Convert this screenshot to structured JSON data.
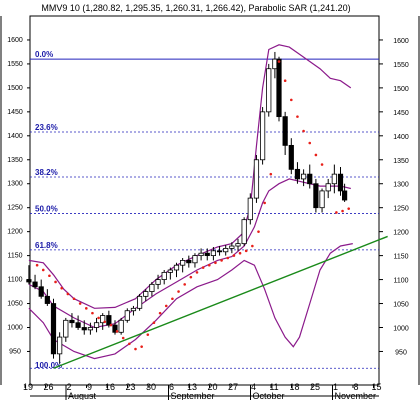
{
  "chart_data": {
    "type": "candlestick",
    "header": "MMV9 10 (1,280.82, 1,295.35, 1,260.31, 1,266.42), Parabolic SAR (1,241.20)",
    "ylim": [
      880,
      1650
    ],
    "right_ticks": [
      950,
      1000,
      1050,
      1100,
      1150,
      1200,
      1250,
      1300,
      1350,
      1400,
      1450,
      1500,
      1550,
      1600
    ],
    "left_ticks": [
      "950",
      "1000",
      "1050",
      "1100",
      "1150",
      "1200",
      "1250",
      "1300",
      "1350",
      "1400",
      "1450",
      "1500",
      "1550",
      "1600"
    ],
    "x_ticks": [
      "19",
      "26",
      "2",
      "9",
      "16",
      "23",
      "30",
      "6",
      "13",
      "20",
      "27",
      "4",
      "11",
      "18",
      "25",
      "1",
      "8",
      "15"
    ],
    "months": [
      {
        "label": "August",
        "tick_index": 2
      },
      {
        "label": "September",
        "tick_index": 7
      },
      {
        "label": "October",
        "tick_index": 11
      },
      {
        "label": "November",
        "tick_index": 15
      }
    ],
    "fibonacci_levels": [
      {
        "label": "0.0%",
        "value": 1560
      },
      {
        "label": "23.6%",
        "value": 1408
      },
      {
        "label": "38.2%",
        "value": 1314
      },
      {
        "label": "50.0%",
        "value": 1238
      },
      {
        "label": "61.8%",
        "value": 1162
      },
      {
        "label": "100.0%",
        "value": 915
      }
    ],
    "trendline": {
      "from": [
        1,
        915
      ],
      "to": [
        17.3,
        1190
      ]
    },
    "bollinger_upper": [
      [
        -0.2,
        1140
      ],
      [
        0.5,
        1135
      ],
      [
        1,
        1110
      ],
      [
        1.5,
        1080
      ],
      [
        2,
        1060
      ],
      [
        3,
        1040
      ],
      [
        4,
        1042
      ],
      [
        5,
        1060
      ],
      [
        6,
        1100
      ],
      [
        7,
        1130
      ],
      [
        8,
        1150
      ],
      [
        9,
        1168
      ],
      [
        9.7,
        1175
      ],
      [
        10.2,
        1195
      ],
      [
        10.6,
        1250
      ],
      [
        10.9,
        1380
      ],
      [
        11.2,
        1500
      ],
      [
        11.5,
        1580
      ],
      [
        12,
        1590
      ],
      [
        12.5,
        1585
      ],
      [
        13,
        1570
      ],
      [
        14,
        1540
      ],
      [
        14.5,
        1520
      ],
      [
        15,
        1515
      ],
      [
        15.5,
        1500
      ]
    ],
    "bollinger_middle": [
      [
        -0.2,
        1090
      ],
      [
        0.5,
        1075
      ],
      [
        1,
        1045
      ],
      [
        2,
        1020
      ],
      [
        3,
        1000
      ],
      [
        4,
        1008
      ],
      [
        5,
        1040
      ],
      [
        6,
        1070
      ],
      [
        7,
        1095
      ],
      [
        8,
        1120
      ],
      [
        9,
        1140
      ],
      [
        9.7,
        1148
      ],
      [
        10.3,
        1170
      ],
      [
        10.8,
        1210
      ],
      [
        11.2,
        1260
      ],
      [
        11.5,
        1285
      ],
      [
        12,
        1300
      ],
      [
        12.5,
        1310
      ],
      [
        13,
        1305
      ],
      [
        14,
        1295
      ],
      [
        15,
        1295
      ],
      [
        15.5,
        1290
      ]
    ],
    "bollinger_lower": [
      [
        -0.2,
        1040
      ],
      [
        0.5,
        1010
      ],
      [
        1,
        975
      ],
      [
        2,
        950
      ],
      [
        3,
        935
      ],
      [
        4,
        945
      ],
      [
        5,
        975
      ],
      [
        6,
        1015
      ],
      [
        7,
        1060
      ],
      [
        8,
        1085
      ],
      [
        9,
        1100
      ],
      [
        9.7,
        1120
      ],
      [
        10.3,
        1140
      ],
      [
        10.8,
        1130
      ],
      [
        11.3,
        1080
      ],
      [
        11.8,
        1020
      ],
      [
        12.3,
        980
      ],
      [
        12.7,
        960
      ],
      [
        13,
        980
      ],
      [
        13.5,
        1050
      ],
      [
        14,
        1120
      ],
      [
        14.5,
        1155
      ],
      [
        15,
        1170
      ],
      [
        15.6,
        1175
      ]
    ],
    "sar": [
      [
        0.2,
        1130
      ],
      [
        0.5,
        1120
      ],
      [
        0.8,
        1108
      ],
      [
        1.1,
        1095
      ],
      [
        1.4,
        1082
      ],
      [
        1.7,
        1070
      ],
      [
        2.0,
        1060
      ],
      [
        2.3,
        1050
      ],
      [
        2.6,
        1040
      ],
      [
        2.9,
        1030
      ],
      [
        3.2,
        1020
      ],
      [
        3.5,
        1012
      ],
      [
        3.8,
        1005
      ],
      [
        4.1,
        992
      ],
      [
        4.4,
        978
      ],
      [
        4.7,
        966
      ],
      [
        5.0,
        955
      ],
      [
        5.3,
        960
      ],
      [
        5.6,
        985
      ],
      [
        5.9,
        1010
      ],
      [
        6.2,
        1030
      ],
      [
        6.5,
        1045
      ],
      [
        6.8,
        1060
      ],
      [
        7.1,
        1075
      ],
      [
        7.4,
        1090
      ],
      [
        7.7,
        1105
      ],
      [
        8.0,
        1115
      ],
      [
        8.3,
        1125
      ],
      [
        8.6,
        1130
      ],
      [
        8.9,
        1135
      ],
      [
        9.2,
        1140
      ],
      [
        9.5,
        1145
      ],
      [
        9.8,
        1150
      ],
      [
        10.1,
        1155
      ],
      [
        10.4,
        1160
      ],
      [
        10.7,
        1170
      ],
      [
        11.0,
        1200
      ],
      [
        11.3,
        1260
      ],
      [
        11.6,
        1320
      ],
      [
        12.0,
        1555
      ],
      [
        12.3,
        1515
      ],
      [
        12.6,
        1475
      ],
      [
        12.9,
        1440
      ],
      [
        13.2,
        1410
      ],
      [
        13.5,
        1385
      ],
      [
        13.8,
        1360
      ],
      [
        14.1,
        1340
      ],
      [
        14.8,
        1240
      ],
      [
        15.1,
        1243
      ],
      [
        15.4,
        1248
      ]
    ],
    "candles": [
      [
        -0.2,
        1100,
        1130,
        1090,
        1095
      ],
      [
        0.1,
        1095,
        1110,
        1080,
        1085
      ],
      [
        0.4,
        1085,
        1100,
        1060,
        1065
      ],
      [
        0.7,
        1065,
        1080,
        1045,
        1050
      ],
      [
        1.0,
        1050,
        1060,
        935,
        945
      ],
      [
        1.3,
        945,
        990,
        925,
        980
      ],
      [
        1.6,
        980,
        1020,
        970,
        1015
      ],
      [
        1.9,
        1015,
        1030,
        1000,
        1010
      ],
      [
        2.2,
        1010,
        1025,
        995,
        1000
      ],
      [
        2.5,
        1000,
        1015,
        985,
        995
      ],
      [
        2.8,
        995,
        1010,
        985,
        1000
      ],
      [
        3.1,
        1000,
        1020,
        990,
        1010
      ],
      [
        3.4,
        1010,
        1030,
        995,
        1025
      ],
      [
        3.7,
        1025,
        1035,
        1000,
        1005
      ],
      [
        4.0,
        1005,
        1015,
        985,
        990
      ],
      [
        4.3,
        990,
        1020,
        985,
        1015
      ],
      [
        4.6,
        1015,
        1040,
        1010,
        1035
      ],
      [
        4.9,
        1035,
        1045,
        1025,
        1040
      ],
      [
        5.2,
        1040,
        1070,
        1035,
        1065
      ],
      [
        5.5,
        1065,
        1080,
        1055,
        1075
      ],
      [
        5.8,
        1075,
        1095,
        1065,
        1090
      ],
      [
        6.1,
        1090,
        1110,
        1080,
        1100
      ],
      [
        6.4,
        1100,
        1120,
        1090,
        1115
      ],
      [
        6.7,
        1115,
        1125,
        1100,
        1120
      ],
      [
        7.0,
        1120,
        1135,
        1105,
        1130
      ],
      [
        7.3,
        1130,
        1145,
        1115,
        1140
      ],
      [
        7.6,
        1140,
        1150,
        1125,
        1135
      ],
      [
        7.9,
        1135,
        1155,
        1125,
        1150
      ],
      [
        8.2,
        1150,
        1165,
        1140,
        1155
      ],
      [
        8.5,
        1155,
        1165,
        1140,
        1150
      ],
      [
        8.8,
        1150,
        1168,
        1140,
        1160
      ],
      [
        9.1,
        1160,
        1170,
        1150,
        1158
      ],
      [
        9.4,
        1158,
        1172,
        1150,
        1165
      ],
      [
        9.7,
        1165,
        1178,
        1155,
        1170
      ],
      [
        10.0,
        1170,
        1185,
        1160,
        1175
      ],
      [
        10.3,
        1175,
        1230,
        1170,
        1225
      ],
      [
        10.6,
        1225,
        1280,
        1215,
        1270
      ],
      [
        10.9,
        1270,
        1360,
        1260,
        1350
      ],
      [
        11.2,
        1350,
        1460,
        1340,
        1450
      ],
      [
        11.5,
        1450,
        1550,
        1440,
        1540
      ],
      [
        11.8,
        1540,
        1575,
        1520,
        1560
      ],
      [
        12.0,
        1560,
        1565,
        1430,
        1440
      ],
      [
        12.3,
        1440,
        1450,
        1360,
        1380
      ],
      [
        12.6,
        1380,
        1395,
        1320,
        1330
      ],
      [
        12.9,
        1330,
        1345,
        1300,
        1310
      ],
      [
        13.2,
        1310,
        1330,
        1295,
        1320
      ],
      [
        13.5,
        1320,
        1340,
        1290,
        1300
      ],
      [
        13.8,
        1300,
        1310,
        1240,
        1250
      ],
      [
        14.1,
        1250,
        1290,
        1240,
        1285
      ],
      [
        14.4,
        1285,
        1310,
        1270,
        1300
      ],
      [
        14.7,
        1300,
        1340,
        1280,
        1320
      ],
      [
        15.0,
        1320,
        1335,
        1275,
        1285
      ],
      [
        15.2,
        1285,
        1300,
        1262,
        1266
      ]
    ],
    "colors": {
      "price": "#000000",
      "bollinger": "#8b1a8b",
      "sar": "#e8201a",
      "trend": "#1a8a1a",
      "fib": "#2222bb",
      "grid": "#000000"
    }
  }
}
